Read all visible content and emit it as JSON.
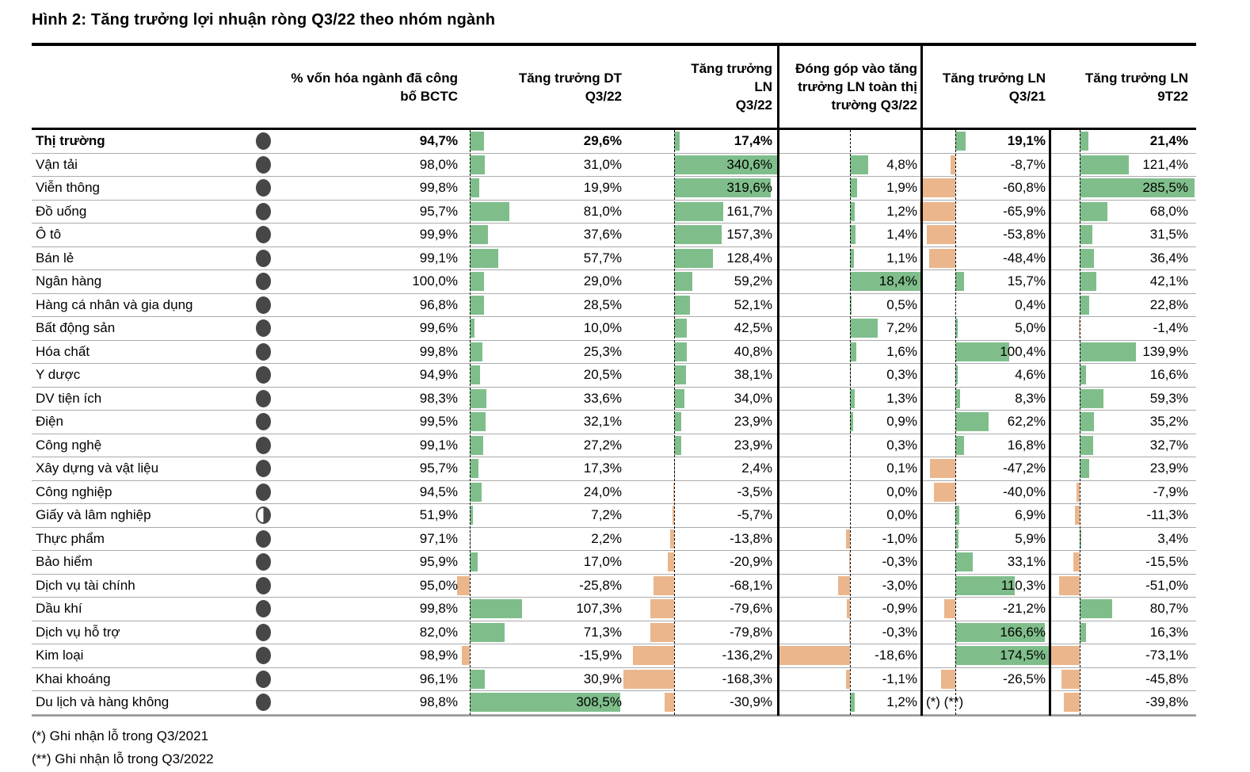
{
  "title": "Hình 2: Tăng trưởng lợi nhuận ròng Q3/22 theo nhóm ngành",
  "columns": {
    "coverage": "% vốn hóa ngành đã công\nbố BCTC",
    "dt": "Tăng trưởng DT\nQ3/22",
    "ln": "Tăng trưởng LN\nQ3/22",
    "contrib": "Đóng góp vào tăng\ntrưởng LN toàn thị\ntrường Q3/22",
    "q321": "Tăng trưởng LN\nQ3/21",
    "t922": "Tăng trưởng LN\n9T22"
  },
  "footnotes": [
    "(*) Ghi nhận lỗ trong Q3/2021",
    "(**) Ghi nhận lỗ trong Q3/2022"
  ],
  "table_meta": {
    "bold_rows": [
      0
    ],
    "half_ball_rows": [
      16
    ],
    "note_row": 24,
    "note_text": "(*) (**)",
    "positive_color": "#7FBE8B",
    "negative_color": "#EBB68C",
    "ball_color": "#474747"
  },
  "chart_data": {
    "type": "table",
    "title": "Hình 2: Tăng trưởng lợi nhuận ròng Q3/22 theo nhóm ngành",
    "unit": "%",
    "decimal_style": "comma",
    "columns": [
      "% vốn hóa ngành đã công bố BCTC",
      "Tăng trưởng DT Q3/22",
      "Tăng trưởng LN Q3/22",
      "Đóng góp vào tăng trưởng LN toàn thị trường Q3/22",
      "Tăng trưởng LN Q3/21",
      "Tăng trưởng LN 9T22"
    ],
    "categories": [
      "Thị trường",
      "Vận tải",
      "Viễn thông",
      "Đồ uống",
      "Ô tô",
      "Bán lẻ",
      "Ngân hàng",
      "Hàng cá nhân và gia dụng",
      "Bất động sản",
      "Hóa chất",
      "Y dược",
      "DV tiện ích",
      "Điện",
      "Công nghệ",
      "Xây dựng và vật liệu",
      "Công nghiệp",
      "Giấy và lâm nghiệp",
      "Thực phẩm",
      "Bảo hiểm",
      "Dịch vụ tài chính",
      "Dầu khí",
      "Dịch vụ hỗ trợ",
      "Kim loại",
      "Khai khoáng",
      "Du lịch và hàng không"
    ],
    "series": [
      {
        "name": "% vốn hóa ngành đã công bố BCTC",
        "values": [
          94.7,
          98.0,
          99.8,
          95.7,
          99.9,
          99.1,
          100.0,
          96.8,
          99.6,
          99.8,
          94.9,
          98.3,
          99.5,
          99.1,
          95.7,
          94.5,
          51.9,
          97.1,
          95.9,
          95.0,
          99.8,
          82.0,
          98.9,
          96.1,
          98.8
        ]
      },
      {
        "name": "Tăng trưởng DT Q3/22",
        "values": [
          29.6,
          31.0,
          19.9,
          81.0,
          37.6,
          57.7,
          29.0,
          28.5,
          10.0,
          25.3,
          20.5,
          33.6,
          32.1,
          27.2,
          17.3,
          24.0,
          7.2,
          2.2,
          17.0,
          -25.8,
          107.3,
          71.3,
          -15.9,
          30.9,
          308.5
        ]
      },
      {
        "name": "Tăng trưởng LN Q3/22",
        "values": [
          17.4,
          340.6,
          319.6,
          161.7,
          157.3,
          128.4,
          59.2,
          52.1,
          42.5,
          40.8,
          38.1,
          34.0,
          23.9,
          23.9,
          2.4,
          -3.5,
          -5.7,
          -13.8,
          -20.9,
          -68.1,
          -79.6,
          -79.8,
          -136.2,
          -168.3,
          -30.9
        ]
      },
      {
        "name": "Đóng góp vào tăng trưởng LN toàn thị trường Q3/22",
        "values": [
          null,
          4.8,
          1.9,
          1.2,
          1.4,
          1.1,
          18.4,
          0.5,
          7.2,
          1.6,
          0.3,
          1.3,
          0.9,
          0.3,
          0.1,
          0.0,
          0.0,
          -1.0,
          -0.3,
          -3.0,
          -0.9,
          -0.3,
          -18.6,
          -1.1,
          1.2
        ]
      },
      {
        "name": "Tăng trưởng LN Q3/21",
        "values": [
          19.1,
          -8.7,
          -60.8,
          -65.9,
          -53.8,
          -48.4,
          15.7,
          0.4,
          5.0,
          100.4,
          4.6,
          8.3,
          62.2,
          16.8,
          -47.2,
          -40.0,
          6.9,
          5.9,
          33.1,
          110.3,
          -21.2,
          166.6,
          174.5,
          -26.5,
          null
        ]
      },
      {
        "name": "Tăng trưởng LN 9T22",
        "values": [
          21.4,
          121.4,
          285.5,
          68.0,
          31.5,
          36.4,
          42.1,
          22.8,
          -1.4,
          139.9,
          16.6,
          59.3,
          35.2,
          32.7,
          23.9,
          -7.9,
          -11.3,
          3.4,
          -15.5,
          -51.0,
          80.7,
          16.3,
          -73.1,
          -45.8,
          -39.8
        ]
      }
    ],
    "legend": {
      "positive_bar_color": "#7FBE8B",
      "negative_bar_color": "#EBB68C"
    },
    "layout": {
      "bars_baseline": "zero axis per column (dashed line), positive bars grow right, negative bars grow left"
    }
  }
}
